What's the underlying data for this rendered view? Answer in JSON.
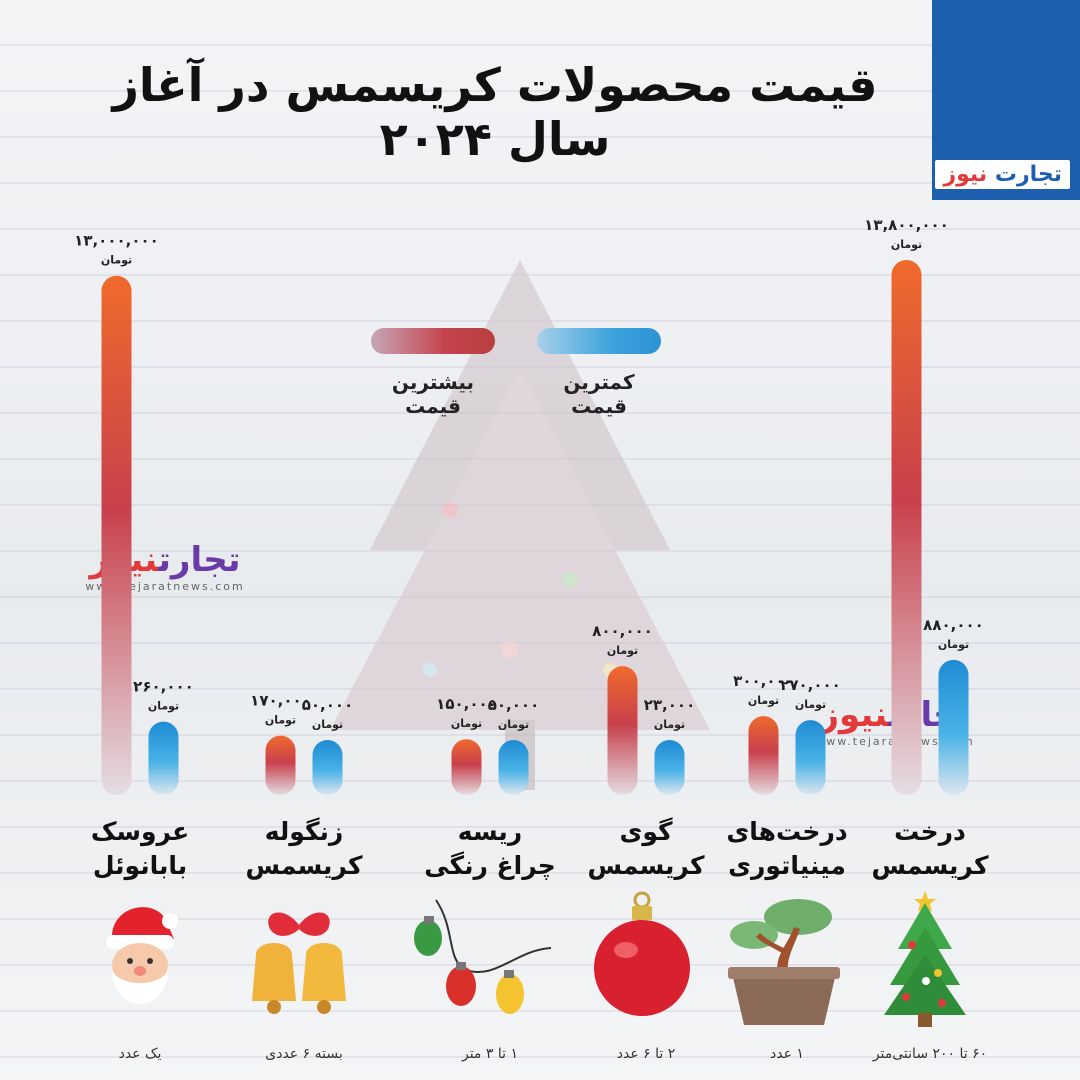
{
  "title": "قیمت محصولات کریسمس در آغاز سال ۲۰۲۴",
  "brand": {
    "name_part1": "تجارت",
    "name_part2": "نیوز",
    "url": "www.tejaratnews.com",
    "color": "#1c5fae",
    "accent": "#e23a3a"
  },
  "legend": {
    "max_label": "بیشترین قیمت",
    "min_label": "کمترین قیمت"
  },
  "unit_label": "تومان",
  "colors": {
    "max": "#e0533a",
    "min": "#2f98d8"
  },
  "chart_data": {
    "type": "bar",
    "orientation": "vertical, grouped",
    "categories": [
      {
        "name": "درخت\nکریسمس",
        "note": "۶۰ تا ۲۰۰ سانتی‌متر",
        "icon": "christmas-tree-icon"
      },
      {
        "name": "درخت‌های\nمینیاتوری",
        "note": "۱ عدد",
        "icon": "bonsai-icon"
      },
      {
        "name": "گوی\nکریسمس",
        "note": "۲ تا ۶ عدد",
        "icon": "ornament-ball-icon"
      },
      {
        "name": "ریسه\nچراغ رنگی",
        "note": "۱ تا ۳ متر",
        "icon": "string-lights-icon"
      },
      {
        "name": "زنگوله\nکریسمس",
        "note": "بسته ۶ عددی",
        "icon": "bells-icon"
      },
      {
        "name": "عروسک\nبابانوئل",
        "note": "یک عدد",
        "icon": "santa-icon"
      }
    ],
    "series": [
      {
        "name": "بیشترین قیمت",
        "values": [
          13800000,
          300000,
          800000,
          150000,
          170000,
          13000000
        ],
        "labels": [
          "۱۳,۸۰۰,۰۰۰",
          "۳۰۰,۰۰۰",
          "۸۰۰,۰۰۰",
          "۱۵۰,۰۰۰",
          "۱۷۰,۰۰۰",
          "۱۳,۰۰۰,۰۰۰"
        ]
      },
      {
        "name": "کمترین قیمت",
        "values": [
          880000,
          270000,
          23000,
          50000,
          50000,
          260000
        ],
        "labels": [
          "۸۸۰,۰۰۰",
          "۲۷۰,۰۰۰",
          "۲۳,۰۰۰",
          "۵۰,۰۰۰",
          "۵۰,۰۰۰",
          "۲۶۰,۰۰۰"
        ]
      }
    ],
    "legend_position": "top-center"
  }
}
